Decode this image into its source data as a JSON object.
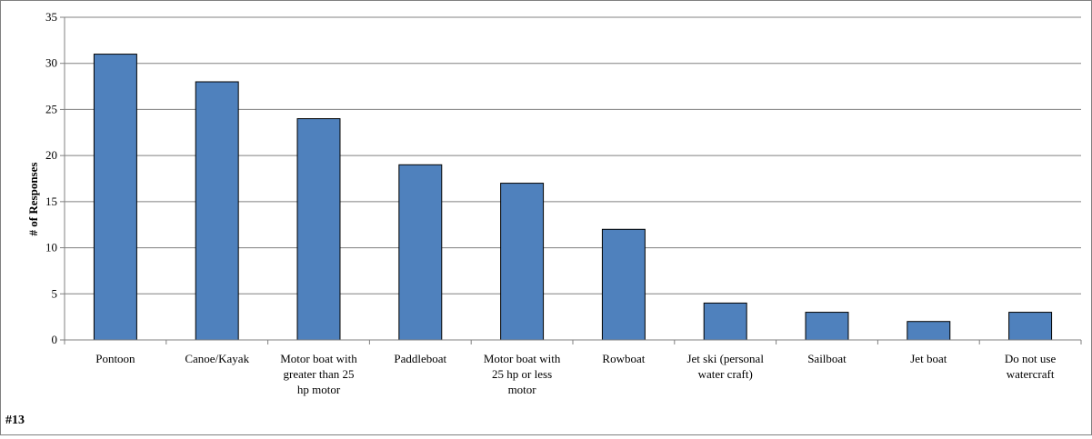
{
  "chart_data": {
    "type": "bar",
    "title": "",
    "xlabel": "",
    "ylabel": "# of Responses",
    "ylim": [
      0,
      35
    ],
    "yticks": [
      0,
      5,
      10,
      15,
      20,
      25,
      30,
      35
    ],
    "grid": true,
    "legend": "none",
    "categories": [
      [
        "Pontoon"
      ],
      [
        "Canoe/Kayak"
      ],
      [
        "Motor boat with",
        "greater than 25",
        "hp motor"
      ],
      [
        "Paddleboat"
      ],
      [
        "Motor boat with",
        "25 hp or less",
        "motor"
      ],
      [
        "Rowboat"
      ],
      [
        "Jet ski (personal",
        "water craft)"
      ],
      [
        "Sailboat"
      ],
      [
        "Jet boat"
      ],
      [
        "Do not use",
        "watercraft"
      ]
    ],
    "values": [
      31,
      28,
      24,
      19,
      17,
      12,
      4,
      3,
      2,
      3
    ],
    "bar_color": "#4F81BD",
    "bar_edge_color": "#000000",
    "grid_color": "#808080"
  },
  "footnote": "#13"
}
